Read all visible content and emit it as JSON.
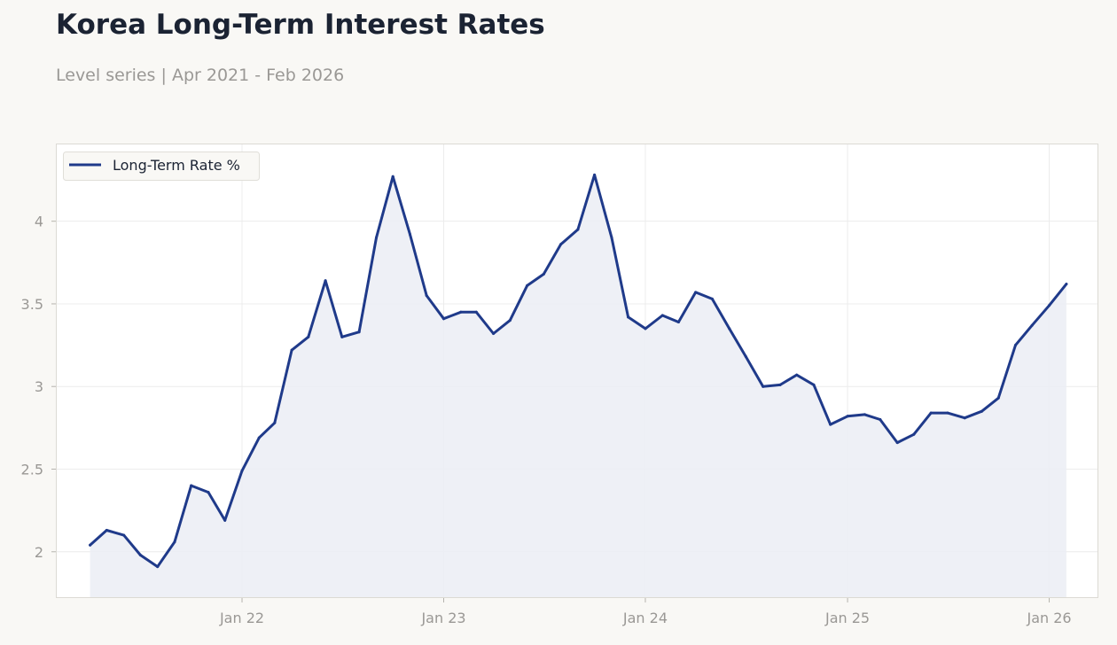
{
  "title": "Korea Long-Term Interest Rates",
  "subtitle": "Level series | Apr 2021 - Feb 2026",
  "colors": {
    "line": "#1f3a8a",
    "area": "#eceef5",
    "plot_background": "#ffffff",
    "page_background": "#f9f8f5",
    "grid": "#ececec",
    "text_muted": "#9a9895",
    "text_dark": "#1b2333"
  },
  "chart_data": {
    "type": "area",
    "title": "Korea Long-Term Interest Rates",
    "subtitle": "Level series | Apr 2021 - Feb 2026",
    "xlabel": "",
    "ylabel": "",
    "x_range": [
      "2021-01-29",
      "2026-03-31"
    ],
    "ylim": [
      1.72,
      4.47
    ],
    "yticks": [
      2,
      2.5,
      3,
      3.5,
      4
    ],
    "ytick_labels": [
      "2",
      "2.5",
      "3",
      "3.5",
      "4"
    ],
    "xticks": [
      "2022-01-01",
      "2023-01-01",
      "2024-01-01",
      "2025-01-01",
      "2026-01-01"
    ],
    "xtick_labels": [
      "Jan 22",
      "Jan 23",
      "Jan 24",
      "Jan 25",
      "Jan 26"
    ],
    "grid": true,
    "legend_position": "top-left",
    "series": [
      {
        "name": "Long-Term Rate %",
        "x": [
          "2021-04",
          "2021-05",
          "2021-06",
          "2021-07",
          "2021-08",
          "2021-09",
          "2021-10",
          "2021-11",
          "2021-12",
          "2022-01",
          "2022-02",
          "2022-03",
          "2022-04",
          "2022-05",
          "2022-06",
          "2022-07",
          "2022-08",
          "2022-09",
          "2022-10",
          "2022-11",
          "2022-12",
          "2023-01",
          "2023-02",
          "2023-03",
          "2023-04",
          "2023-05",
          "2023-06",
          "2023-07",
          "2023-08",
          "2023-09",
          "2023-10",
          "2023-11",
          "2023-12",
          "2024-01",
          "2024-02",
          "2024-03",
          "2024-04",
          "2024-05",
          "2024-06",
          "2024-07",
          "2024-08",
          "2024-09",
          "2024-10",
          "2024-11",
          "2024-12",
          "2025-01",
          "2025-02",
          "2025-03",
          "2025-04",
          "2025-05",
          "2025-06",
          "2025-07",
          "2025-08",
          "2025-09",
          "2025-10",
          "2025-11",
          "2025-12",
          "2026-01",
          "2026-02"
        ],
        "values": [
          2.04,
          2.13,
          2.1,
          1.98,
          1.91,
          2.06,
          2.4,
          2.36,
          2.19,
          2.49,
          2.69,
          2.78,
          3.22,
          3.3,
          3.64,
          3.3,
          3.33,
          3.9,
          4.27,
          3.92,
          3.55,
          3.41,
          3.45,
          3.45,
          3.32,
          3.4,
          3.61,
          3.68,
          3.86,
          3.95,
          4.28,
          3.9,
          3.42,
          3.35,
          3.43,
          3.39,
          3.57,
          3.53,
          3.35,
          3.18,
          3.0,
          3.01,
          3.07,
          3.01,
          2.77,
          2.82,
          2.83,
          2.8,
          2.66,
          2.71,
          2.84,
          2.84,
          2.81,
          2.85,
          2.93,
          3.25,
          3.37,
          3.49,
          3.62
        ]
      }
    ]
  }
}
